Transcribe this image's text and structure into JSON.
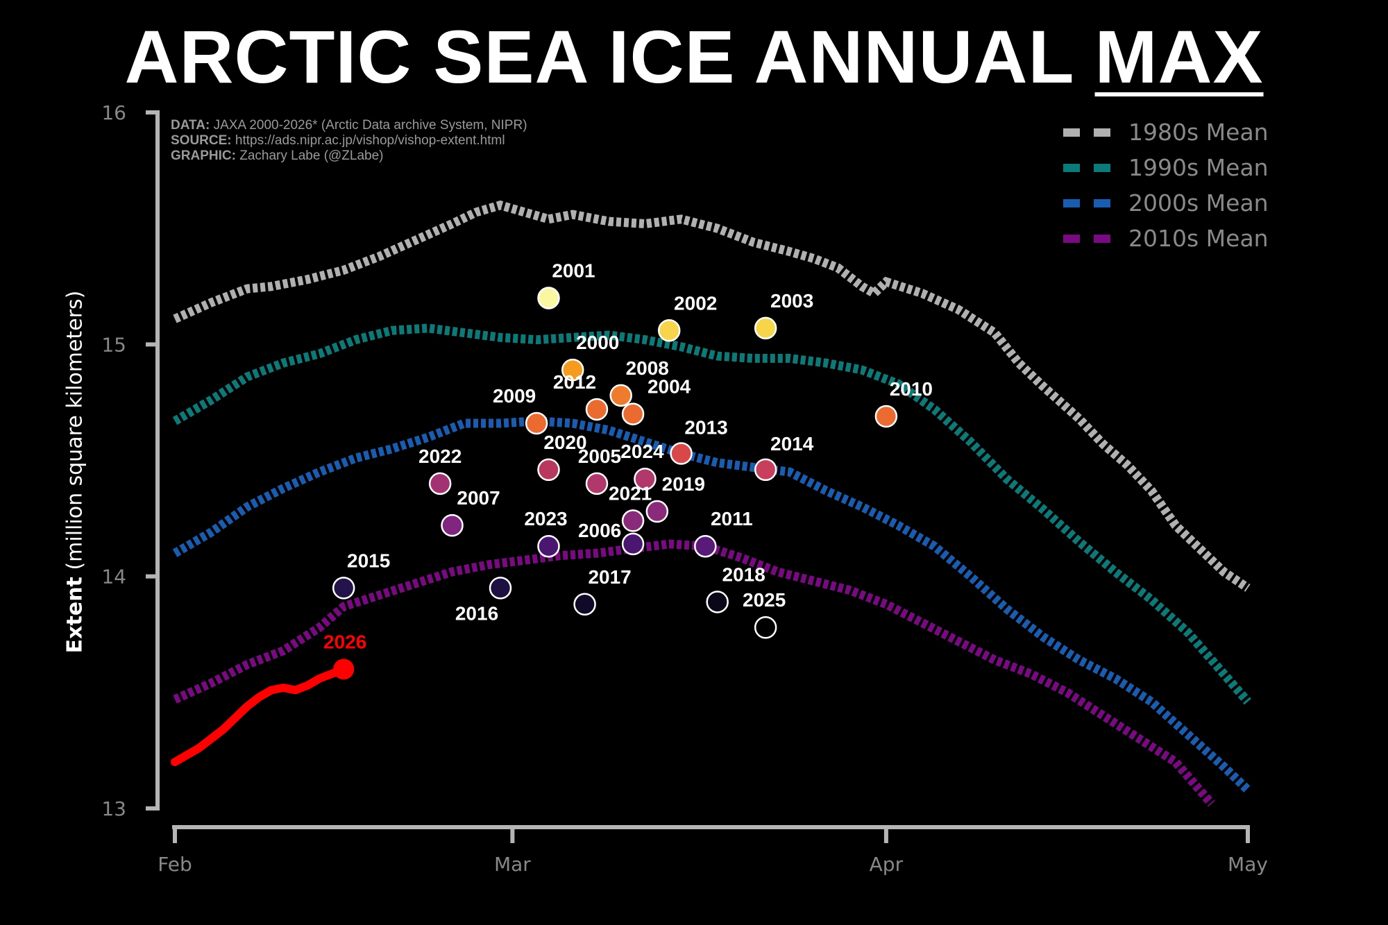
{
  "title": {
    "main": "ARCTIC SEA ICE ANNUAL ",
    "underlined": "MAX"
  },
  "credits": [
    {
      "label": "DATA:",
      "text": "JAXA 2000-2026* (Arctic Data archive System, NIPR)"
    },
    {
      "label": "SOURCE:",
      "text": "https://ads.nipr.ac.jp/vishop/vishop-extent.html"
    },
    {
      "label": "GRAPHIC:",
      "text": "Zachary Labe (@ZLabe)"
    }
  ],
  "legend": [
    {
      "name": "1980s Mean",
      "color": "#b0b0b0"
    },
    {
      "name": "1990s Mean",
      "color": "#0b7a78"
    },
    {
      "name": "2000s Mean",
      "color": "#1a5cb0"
    },
    {
      "name": "2010s Mean",
      "color": "#7a0a82"
    }
  ],
  "chart_data": {
    "type": "line",
    "title": "ARCTIC SEA ICE ANNUAL MAX",
    "xlabel": "",
    "ylabel_bold": "Extent",
    "ylabel_rest": "(million square kilometers)",
    "xlim": [
      "Feb 1",
      "May 1"
    ],
    "ylim": [
      13,
      16
    ],
    "x_ticks": [
      {
        "label": "Feb",
        "day": 0
      },
      {
        "label": "Mar",
        "day": 28
      },
      {
        "label": "Apr",
        "day": 59
      },
      {
        "label": "May",
        "day": 89
      }
    ],
    "y_ticks": [
      13,
      14,
      15,
      16
    ],
    "series": [
      {
        "name": "1980s Mean",
        "color": "#b0b0b0",
        "points": [
          [
            0,
            15.11
          ],
          [
            3,
            15.18
          ],
          [
            6,
            15.24
          ],
          [
            8,
            15.25
          ],
          [
            11,
            15.28
          ],
          [
            14,
            15.32
          ],
          [
            17,
            15.38
          ],
          [
            20,
            15.45
          ],
          [
            23,
            15.52
          ],
          [
            25,
            15.57
          ],
          [
            27,
            15.6
          ],
          [
            29,
            15.57
          ],
          [
            31,
            15.54
          ],
          [
            33,
            15.56
          ],
          [
            36,
            15.53
          ],
          [
            39,
            15.52
          ],
          [
            42,
            15.54
          ],
          [
            45,
            15.5
          ],
          [
            48,
            15.44
          ],
          [
            51,
            15.4
          ],
          [
            53,
            15.37
          ],
          [
            55,
            15.33
          ],
          [
            57,
            15.25
          ],
          [
            58,
            15.22
          ],
          [
            59,
            15.27
          ],
          [
            62,
            15.22
          ],
          [
            65,
            15.15
          ],
          [
            68,
            15.05
          ],
          [
            70,
            14.92
          ],
          [
            72,
            14.82
          ],
          [
            75,
            14.68
          ],
          [
            77,
            14.57
          ],
          [
            79,
            14.48
          ],
          [
            81,
            14.37
          ],
          [
            83,
            14.22
          ],
          [
            85,
            14.12
          ],
          [
            87,
            14.02
          ],
          [
            89,
            13.95
          ]
        ]
      },
      {
        "name": "1990s Mean",
        "color": "#0b7a78",
        "points": [
          [
            0,
            14.67
          ],
          [
            3,
            14.76
          ],
          [
            6,
            14.86
          ],
          [
            9,
            14.92
          ],
          [
            12,
            14.96
          ],
          [
            15,
            15.02
          ],
          [
            18,
            15.06
          ],
          [
            21,
            15.07
          ],
          [
            24,
            15.05
          ],
          [
            27,
            15.03
          ],
          [
            30,
            15.02
          ],
          [
            33,
            15.03
          ],
          [
            36,
            15.04
          ],
          [
            39,
            15.02
          ],
          [
            42,
            14.99
          ],
          [
            45,
            14.95
          ],
          [
            48,
            14.94
          ],
          [
            51,
            14.94
          ],
          [
            54,
            14.92
          ],
          [
            57,
            14.89
          ],
          [
            60,
            14.83
          ],
          [
            63,
            14.72
          ],
          [
            66,
            14.58
          ],
          [
            69,
            14.42
          ],
          [
            72,
            14.29
          ],
          [
            75,
            14.15
          ],
          [
            78,
            14.02
          ],
          [
            81,
            13.9
          ],
          [
            84,
            13.76
          ],
          [
            86,
            13.64
          ],
          [
            88,
            13.52
          ],
          [
            89,
            13.46
          ]
        ]
      },
      {
        "name": "2000s Mean",
        "color": "#1a5cb0",
        "points": [
          [
            0,
            14.1
          ],
          [
            3,
            14.19
          ],
          [
            6,
            14.3
          ],
          [
            9,
            14.38
          ],
          [
            12,
            14.45
          ],
          [
            15,
            14.51
          ],
          [
            18,
            14.55
          ],
          [
            21,
            14.6
          ],
          [
            24,
            14.66
          ],
          [
            27,
            14.66
          ],
          [
            30,
            14.67
          ],
          [
            33,
            14.66
          ],
          [
            36,
            14.63
          ],
          [
            39,
            14.58
          ],
          [
            42,
            14.53
          ],
          [
            45,
            14.49
          ],
          [
            48,
            14.47
          ],
          [
            51,
            14.45
          ],
          [
            54,
            14.37
          ],
          [
            57,
            14.3
          ],
          [
            60,
            14.22
          ],
          [
            63,
            14.13
          ],
          [
            66,
            14.0
          ],
          [
            69,
            13.86
          ],
          [
            72,
            13.74
          ],
          [
            75,
            13.64
          ],
          [
            78,
            13.56
          ],
          [
            81,
            13.46
          ],
          [
            84,
            13.32
          ],
          [
            87,
            13.18
          ],
          [
            89,
            13.08
          ]
        ]
      },
      {
        "name": "2010s Mean",
        "color": "#7a0a82",
        "points": [
          [
            0,
            13.47
          ],
          [
            3,
            13.54
          ],
          [
            6,
            13.62
          ],
          [
            9,
            13.68
          ],
          [
            12,
            13.78
          ],
          [
            14,
            13.87
          ],
          [
            17,
            13.92
          ],
          [
            20,
            13.97
          ],
          [
            23,
            14.02
          ],
          [
            26,
            14.05
          ],
          [
            29,
            14.07
          ],
          [
            32,
            14.09
          ],
          [
            35,
            14.1
          ],
          [
            38,
            14.12
          ],
          [
            41,
            14.14
          ],
          [
            44,
            14.13
          ],
          [
            47,
            14.08
          ],
          [
            50,
            14.02
          ],
          [
            53,
            13.98
          ],
          [
            56,
            13.94
          ],
          [
            59,
            13.88
          ],
          [
            62,
            13.8
          ],
          [
            65,
            13.72
          ],
          [
            68,
            13.64
          ],
          [
            71,
            13.58
          ],
          [
            74,
            13.5
          ],
          [
            77,
            13.4
          ],
          [
            80,
            13.3
          ],
          [
            83,
            13.2
          ],
          [
            85,
            13.08
          ],
          [
            86,
            13.02
          ]
        ]
      }
    ],
    "current_year": {
      "name": "2026",
      "color": "#ff0000",
      "points": [
        [
          0,
          13.2
        ],
        [
          2,
          13.26
        ],
        [
          4,
          13.34
        ],
        [
          6,
          13.44
        ],
        [
          7,
          13.48
        ],
        [
          8,
          13.51
        ],
        [
          9,
          13.52
        ],
        [
          10,
          13.51
        ],
        [
          11,
          13.53
        ],
        [
          12,
          13.56
        ],
        [
          13,
          13.58
        ],
        [
          14,
          13.6
        ]
      ]
    },
    "maxima": [
      {
        "year": "2001",
        "day": 31,
        "value": 15.2,
        "color": "#fbf7a0"
      },
      {
        "year": "2002",
        "day": 41,
        "value": 15.06,
        "color": "#f6d54a"
      },
      {
        "year": "2003",
        "day": 49,
        "value": 15.07,
        "color": "#f6d54a"
      },
      {
        "year": "2000",
        "day": 33,
        "value": 14.89,
        "color": "#f59b1e"
      },
      {
        "year": "2008",
        "day": 37,
        "value": 14.78,
        "color": "#ee7c2c"
      },
      {
        "year": "2012",
        "day": 35,
        "value": 14.72,
        "color": "#ea6a30"
      },
      {
        "year": "2004",
        "day": 38,
        "value": 14.7,
        "color": "#ea6a30"
      },
      {
        "year": "2009",
        "day": 30,
        "value": 14.66,
        "color": "#ea6a30"
      },
      {
        "year": "2010",
        "day": 59,
        "value": 14.69,
        "color": "#ea6a30"
      },
      {
        "year": "2013",
        "day": 42,
        "value": 14.53,
        "color": "#d84848"
      },
      {
        "year": "2014",
        "day": 49,
        "value": 14.46,
        "color": "#c83f5e"
      },
      {
        "year": "2020",
        "day": 31,
        "value": 14.46,
        "color": "#b8385e"
      },
      {
        "year": "2005",
        "day": 35,
        "value": 14.4,
        "color": "#b0386a"
      },
      {
        "year": "2024",
        "day": 39,
        "value": 14.42,
        "color": "#b0386a"
      },
      {
        "year": "2022",
        "day": 22,
        "value": 14.4,
        "color": "#a23272"
      },
      {
        "year": "2019",
        "day": 40,
        "value": 14.28,
        "color": "#8a2a7a"
      },
      {
        "year": "2021",
        "day": 38,
        "value": 14.24,
        "color": "#8a2a7a"
      },
      {
        "year": "2007",
        "day": 23,
        "value": 14.22,
        "color": "#802680"
      },
      {
        "year": "2011",
        "day": 44,
        "value": 14.13,
        "color": "#5a1a78"
      },
      {
        "year": "2023",
        "day": 31,
        "value": 14.13,
        "color": "#4a1670"
      },
      {
        "year": "2006",
        "day": 38,
        "value": 14.14,
        "color": "#4a1670"
      },
      {
        "year": "2015",
        "day": 14,
        "value": 13.95,
        "color": "#24124a"
      },
      {
        "year": "2016",
        "day": 27,
        "value": 13.95,
        "color": "#1e1040"
      },
      {
        "year": "2017",
        "day": 34,
        "value": 13.88,
        "color": "#100a28"
      },
      {
        "year": "2018",
        "day": 45,
        "value": 13.89,
        "color": "#0a0818"
      },
      {
        "year": "2025",
        "day": 49,
        "value": 13.78,
        "color": "#000000"
      }
    ]
  }
}
